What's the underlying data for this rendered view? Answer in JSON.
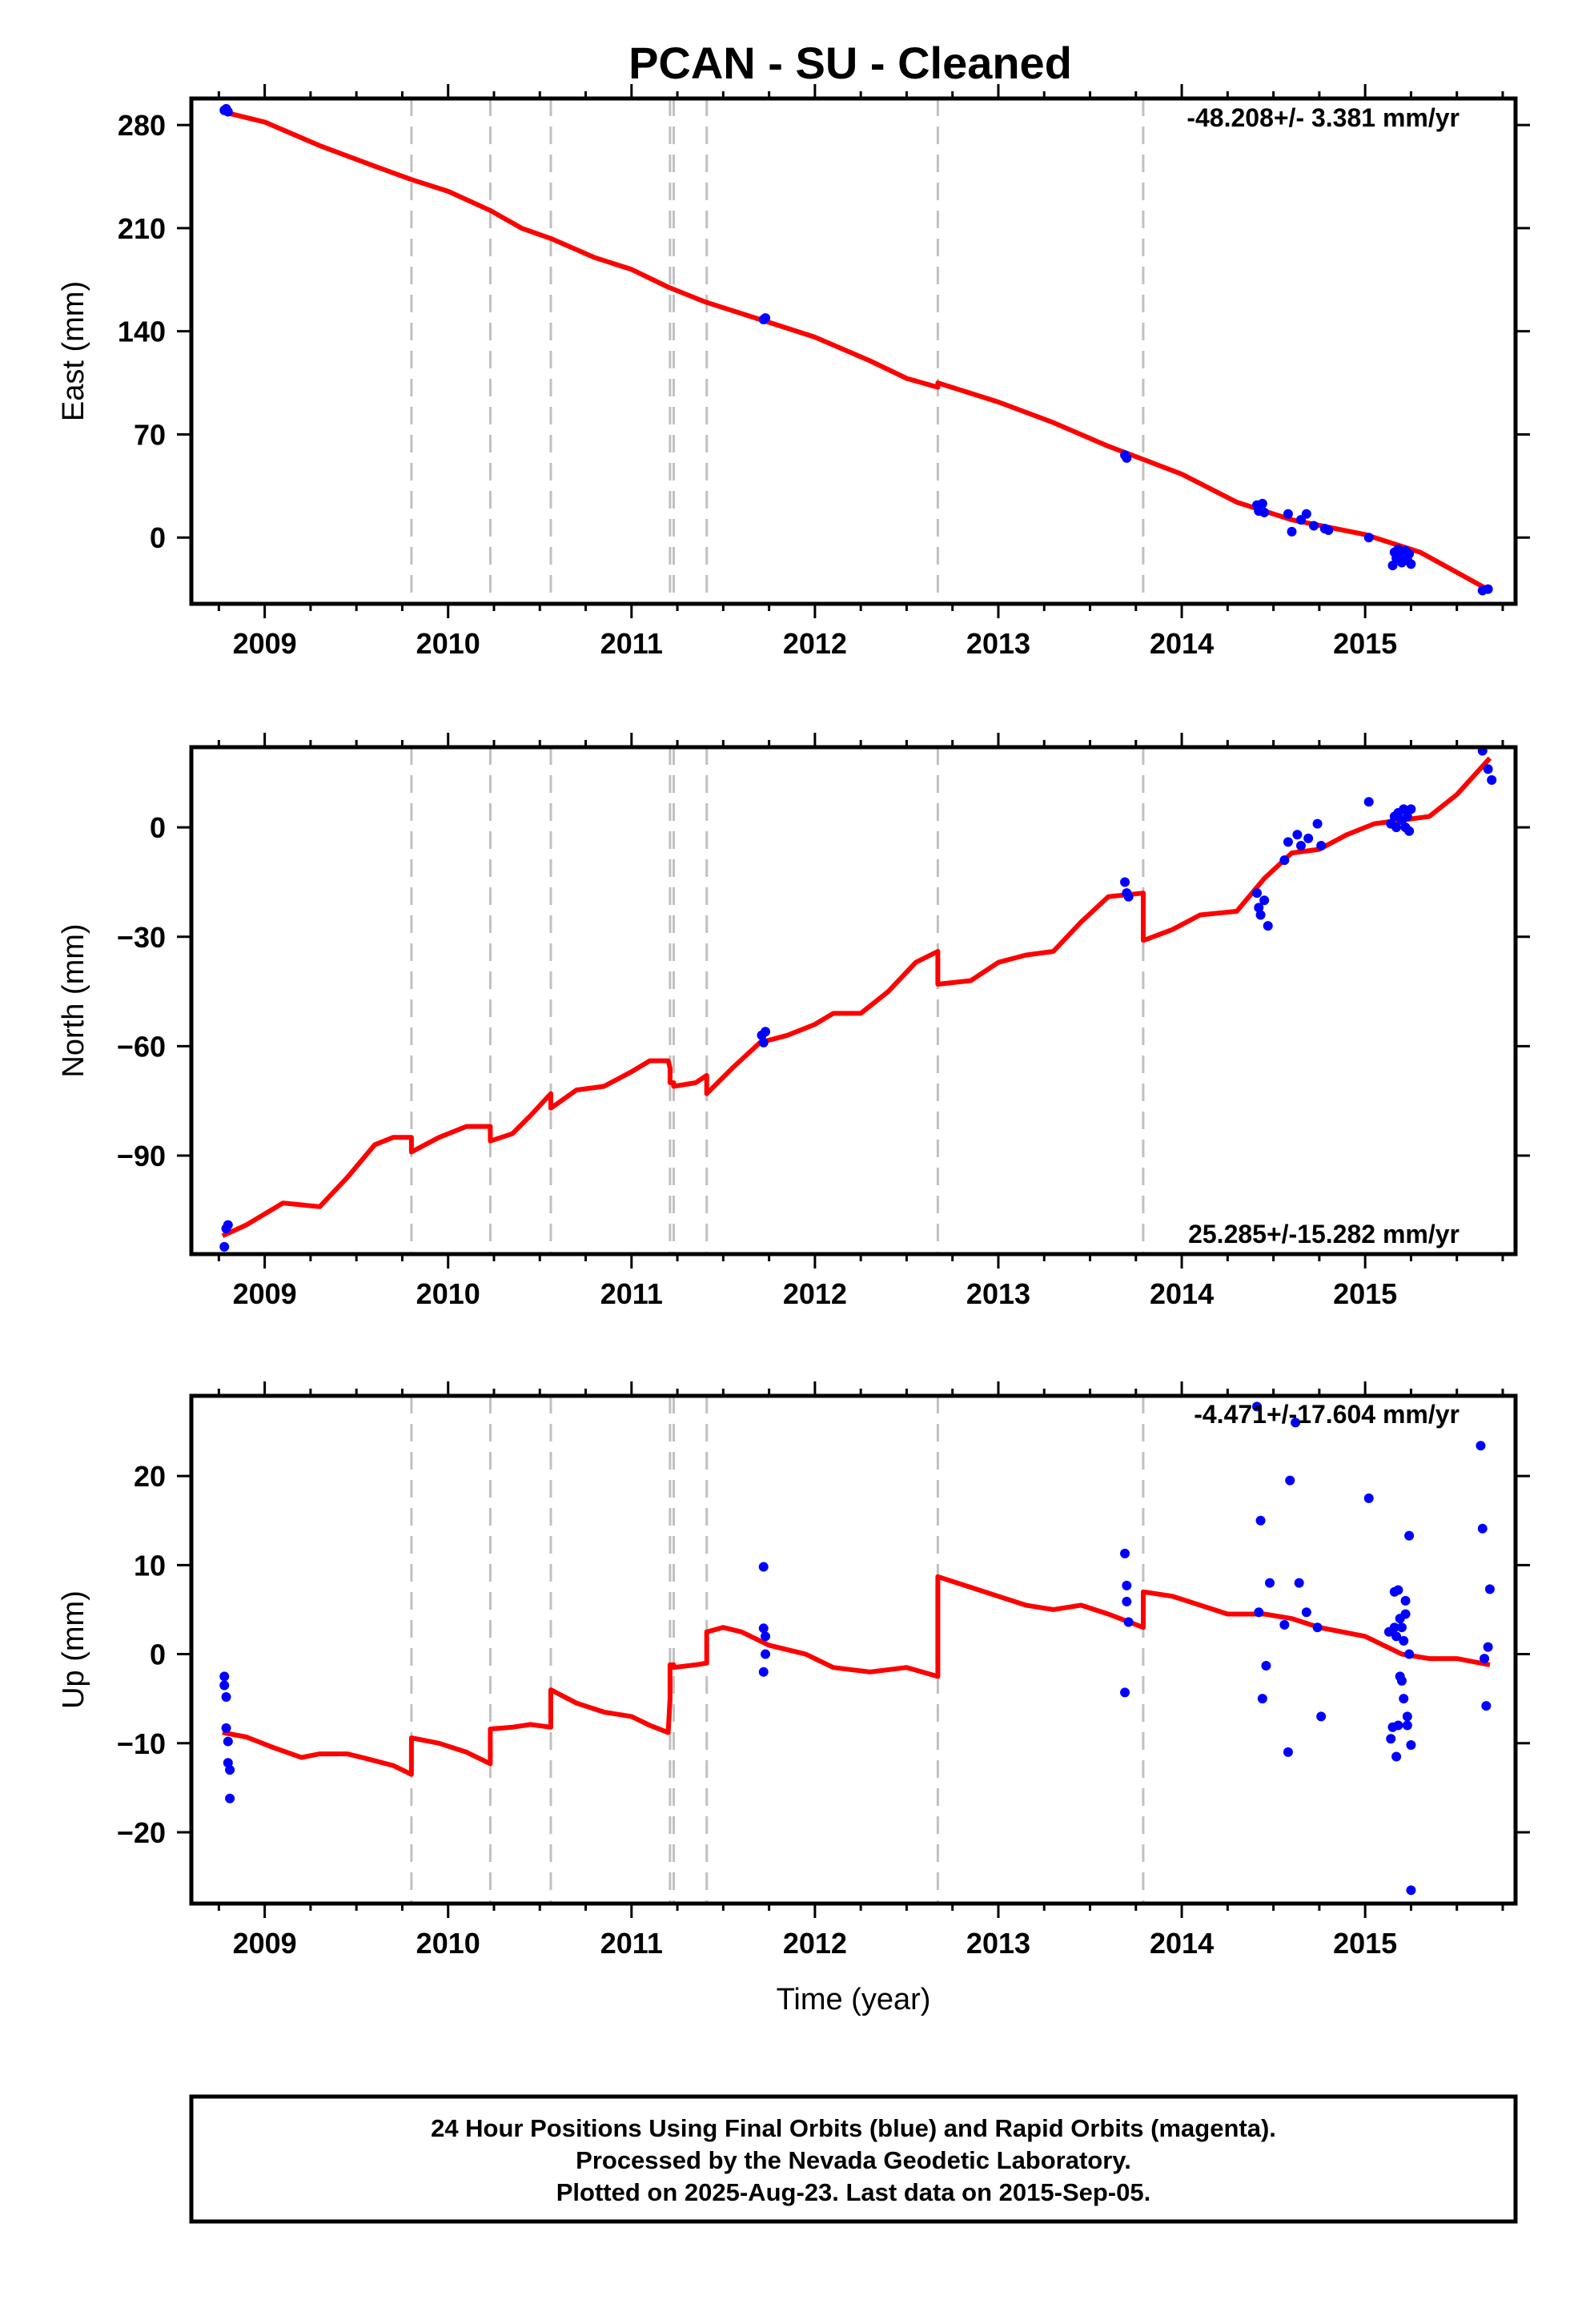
{
  "title": "PCAN  - SU - Cleaned",
  "footer": {
    "line1": "24 Hour Positions Using Final Orbits (blue) and Rapid Orbits (magenta).",
    "line2": "Processed by the Nevada Geodetic Laboratory.",
    "line3": "Plotted on 2025-Aug-23. Last data on 2015-Sep-05."
  },
  "colors": {
    "fit": "#ff0000",
    "points": "#0000ff",
    "steps": "#c0c0c0",
    "frame": "#000000"
  },
  "chart_data": [
    {
      "type": "scatter",
      "panel": "east",
      "ylabel": "East (mm)",
      "xlabel": "",
      "rate_label": "-48.208+/- 3.381 mm/yr",
      "xlim": [
        2008.6,
        2015.82
      ],
      "ylim": [
        -45,
        298
      ],
      "xticks": [
        2009,
        2010,
        2011,
        2012,
        2013,
        2014,
        2015
      ],
      "yticks": [
        280,
        210,
        140,
        70,
        0
      ],
      "step_epochs": [
        2009.8,
        2010.23,
        2010.56,
        2011.21,
        2011.23,
        2011.41,
        2012.67,
        2013.79
      ],
      "grid": false,
      "series": [
        {
          "role": "fit",
          "x": [
            2008.77,
            2009.0,
            2009.3,
            2009.6,
            2009.8,
            2010.0,
            2010.23,
            2010.4,
            2010.56,
            2010.8,
            2011.0,
            2011.2,
            2011.4,
            2011.7,
            2012.0,
            2012.3,
            2012.5,
            2012.67,
            2012.67,
            2013.0,
            2013.3,
            2013.6,
            2013.79,
            2014.0,
            2014.3,
            2014.6,
            2015.0,
            2015.3,
            2015.68
          ],
          "y": [
            289,
            282,
            266,
            252,
            243,
            235,
            222,
            210,
            203,
            190,
            182,
            170,
            160,
            148,
            136,
            120,
            108,
            102,
            105,
            92,
            78,
            62,
            53,
            43,
            24,
            12,
            2,
            -10,
            -36
          ]
        },
        {
          "role": "final_orbits",
          "x": [
            2008.78,
            2008.79,
            2008.8,
            2011.72,
            2011.73,
            2013.69,
            2013.7,
            2014.41,
            2014.42,
            2014.43,
            2014.44,
            2014.45,
            2014.58,
            2014.6,
            2014.65,
            2014.68,
            2014.72,
            2014.78,
            2014.8,
            2015.02,
            2015.15,
            2015.16,
            2015.17,
            2015.18,
            2015.2,
            2015.21,
            2015.22,
            2015.23,
            2015.24,
            2015.25,
            2015.64,
            2015.67
          ],
          "y": [
            290,
            291,
            289,
            148,
            149,
            56,
            54,
            22,
            18,
            20,
            23,
            17,
            16,
            4,
            12,
            16,
            8,
            6,
            5,
            0,
            -19,
            -10,
            -14,
            -8,
            -17,
            -12,
            -9,
            -15,
            -11,
            -18,
            -36,
            -35
          ]
        }
      ]
    },
    {
      "type": "scatter",
      "panel": "north",
      "ylabel": "North (mm)",
      "xlabel": "",
      "rate_label": "25.285+/-15.282 mm/yr",
      "xlim": [
        2008.6,
        2015.82
      ],
      "ylim": [
        -117,
        22
      ],
      "xticks": [
        2009,
        2010,
        2011,
        2012,
        2013,
        2014,
        2015
      ],
      "yticks": [
        0,
        -30,
        -60,
        -90
      ],
      "step_epochs": [
        2009.8,
        2010.23,
        2010.56,
        2011.21,
        2011.23,
        2011.41,
        2012.67,
        2013.79
      ],
      "grid": false,
      "series": [
        {
          "role": "fit",
          "x": [
            2008.77,
            2008.9,
            2009.1,
            2009.3,
            2009.45,
            2009.6,
            2009.7,
            2009.8,
            2009.8,
            2009.95,
            2010.1,
            2010.23,
            2010.23,
            2010.35,
            2010.45,
            2010.56,
            2010.56,
            2010.7,
            2010.85,
            2011.0,
            2011.1,
            2011.2,
            2011.21,
            2011.21,
            2011.23,
            2011.23,
            2011.35,
            2011.41,
            2011.41,
            2011.55,
            2011.7,
            2011.85,
            2012.0,
            2012.1,
            2012.25,
            2012.4,
            2012.55,
            2012.67,
            2012.67,
            2012.85,
            2013.0,
            2013.15,
            2013.3,
            2013.45,
            2013.6,
            2013.79,
            2013.79,
            2013.95,
            2014.1,
            2014.3,
            2014.45,
            2014.6,
            2014.75,
            2014.9,
            2015.05,
            2015.2,
            2015.35,
            2015.5,
            2015.68
          ],
          "y": [
            -112,
            -109,
            -103,
            -104,
            -96,
            -87,
            -85,
            -85,
            -89,
            -85,
            -82,
            -82,
            -86,
            -84,
            -79,
            -73,
            -77,
            -72,
            -71,
            -67,
            -64,
            -64,
            -66,
            -70,
            -70,
            -71,
            -70,
            -68,
            -73,
            -66,
            -59,
            -57,
            -54,
            -51,
            -51,
            -45,
            -37,
            -34,
            -43,
            -42,
            -37,
            -35,
            -34,
            -26,
            -19,
            -18,
            -31,
            -28,
            -24,
            -23,
            -14,
            -7,
            -6,
            -2,
            1,
            2,
            3,
            9,
            19
          ]
        },
        {
          "role": "final_orbits",
          "x": [
            2008.78,
            2008.79,
            2008.8,
            2011.71,
            2011.72,
            2011.73,
            2013.69,
            2013.7,
            2013.71,
            2014.41,
            2014.42,
            2014.43,
            2014.45,
            2014.47,
            2014.56,
            2014.58,
            2014.63,
            2014.65,
            2014.69,
            2014.74,
            2014.76,
            2015.02,
            2015.14,
            2015.16,
            2015.17,
            2015.18,
            2015.2,
            2015.21,
            2015.22,
            2015.23,
            2015.24,
            2015.25,
            2015.64,
            2015.67,
            2015.69
          ],
          "y": [
            -115,
            -110,
            -109,
            -57,
            -59,
            -56,
            -15,
            -18,
            -19,
            -18,
            -22,
            -24,
            -20,
            -27,
            -9,
            -4,
            -2,
            -5,
            -3,
            1,
            -5,
            7,
            1,
            3,
            0,
            4,
            2,
            5,
            0,
            3,
            -1,
            5,
            21,
            16,
            13
          ]
        }
      ]
    },
    {
      "type": "scatter",
      "panel": "up",
      "ylabel": "Up (mm)",
      "xlabel": "Time (year)",
      "rate_label": "-4.471+/-17.604 mm/yr",
      "xlim": [
        2008.6,
        2015.82
      ],
      "ylim": [
        -28,
        29
      ],
      "xticks": [
        2009,
        2010,
        2011,
        2012,
        2013,
        2014,
        2015
      ],
      "yticks": [
        20,
        10,
        0,
        -10,
        -20
      ],
      "step_epochs": [
        2009.8,
        2010.23,
        2010.56,
        2011.21,
        2011.23,
        2011.41,
        2012.67,
        2013.79
      ],
      "grid": false,
      "series": [
        {
          "role": "fit",
          "x": [
            2008.77,
            2008.9,
            2009.05,
            2009.2,
            2009.3,
            2009.45,
            2009.55,
            2009.7,
            2009.8,
            2009.8,
            2009.95,
            2010.1,
            2010.23,
            2010.23,
            2010.35,
            2010.45,
            2010.56,
            2010.56,
            2010.7,
            2010.85,
            2011.0,
            2011.1,
            2011.2,
            2011.21,
            2011.21,
            2011.23,
            2011.23,
            2011.35,
            2011.41,
            2011.41,
            2011.5,
            2011.6,
            2011.75,
            2011.95,
            2012.1,
            2012.3,
            2012.5,
            2012.67,
            2012.67,
            2012.85,
            2013.0,
            2013.15,
            2013.3,
            2013.45,
            2013.6,
            2013.79,
            2013.79,
            2013.95,
            2014.1,
            2014.25,
            2014.45,
            2014.6,
            2014.75,
            2015.0,
            2015.2,
            2015.35,
            2015.5,
            2015.68
          ],
          "y": [
            -8.8,
            -9.3,
            -10.5,
            -11.6,
            -11.2,
            -11.2,
            -11.7,
            -12.5,
            -13.5,
            -9.4,
            -10.0,
            -11.0,
            -12.3,
            -8.4,
            -8.2,
            -7.9,
            -8.2,
            -4.0,
            -5.5,
            -6.5,
            -7.0,
            -8.0,
            -8.8,
            -5.0,
            -1.2,
            -1.2,
            -1.5,
            -1.2,
            -1.0,
            2.5,
            3.0,
            2.5,
            1.0,
            0.0,
            -1.5,
            -2.0,
            -1.5,
            -2.5,
            8.7,
            7.5,
            6.5,
            5.5,
            5.0,
            5.5,
            4.5,
            3.0,
            7.0,
            6.5,
            5.5,
            4.5,
            4.5,
            4.0,
            3.0,
            2.0,
            0.0,
            -0.5,
            -0.5,
            -1.2
          ]
        },
        {
          "role": "final_orbits",
          "x": [
            2008.78,
            2008.78,
            2008.79,
            2008.79,
            2008.8,
            2008.8,
            2008.81,
            2008.81,
            2011.72,
            2011.72,
            2011.73,
            2011.73,
            2011.72,
            2013.69,
            2013.7,
            2013.7,
            2013.71,
            2013.69,
            2014.41,
            2014.42,
            2014.43,
            2014.44,
            2014.46,
            2014.48,
            2014.56,
            2014.58,
            2014.59,
            2014.62,
            2014.64,
            2014.68,
            2014.74,
            2014.76,
            2015.02,
            2015.13,
            2015.14,
            2015.15,
            2015.16,
            2015.16,
            2015.17,
            2015.17,
            2015.18,
            2015.18,
            2015.19,
            2015.19,
            2015.2,
            2015.2,
            2015.21,
            2015.21,
            2015.22,
            2015.22,
            2015.23,
            2015.23,
            2015.24,
            2015.24,
            2015.25,
            2015.25,
            2015.63,
            2015.64,
            2015.65,
            2015.66,
            2015.67,
            2015.68
          ],
          "y": [
            -2.5,
            -3.5,
            -4.8,
            -8.3,
            -9.8,
            -12.2,
            -13.0,
            -16.2,
            9.8,
            2.9,
            2.0,
            0.0,
            -2.0,
            11.3,
            7.7,
            5.9,
            3.6,
            -4.3,
            27.8,
            4.7,
            15.0,
            -5.0,
            -1.3,
            8.0,
            3.3,
            -11.0,
            19.5,
            26.0,
            8.0,
            4.7,
            3.0,
            -7.0,
            17.5,
            2.5,
            -9.5,
            -8.2,
            3.0,
            7.0,
            2.0,
            -11.5,
            7.2,
            -8.0,
            4.0,
            -2.5,
            3.0,
            -3.0,
            1.5,
            -5.0,
            4.5,
            6.0,
            -7.0,
            -8.0,
            13.3,
            0.0,
            -10.2,
            -26.5,
            23.4,
            14.1,
            -0.5,
            -5.8,
            0.8,
            7.3
          ]
        }
      ]
    }
  ]
}
